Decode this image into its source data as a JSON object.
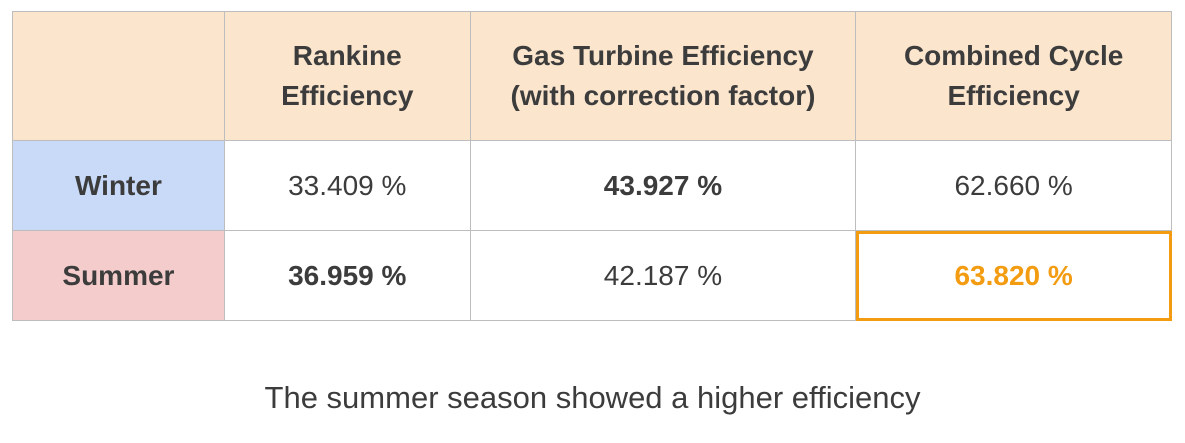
{
  "table": {
    "headers": [
      "",
      "Rankine\nEfficiency",
      "Gas Turbine Efficiency\n(with correction factor)",
      "Combined Cycle\nEfficiency"
    ],
    "header_lines": [
      [],
      [
        "Rankine",
        "Efficiency"
      ],
      [
        "Gas Turbine Efficiency",
        "(with correction factor)"
      ],
      [
        "Combined Cycle",
        "Efficiency"
      ]
    ],
    "rows": [
      {
        "label": "Winter",
        "values": [
          "33.409 %",
          "43.927 %",
          "62.660 %"
        ]
      },
      {
        "label": "Summer",
        "values": [
          "36.959 %",
          "42.187 %",
          "63.820 %"
        ]
      }
    ]
  },
  "caption": "The summer season showed a higher efficiency",
  "colors": {
    "header_bg": "#fbe5cd",
    "winter_bg": "#c9daf8",
    "summer_bg": "#f4cccc",
    "highlight": "#f39c12",
    "text": "#3c3c3c"
  }
}
